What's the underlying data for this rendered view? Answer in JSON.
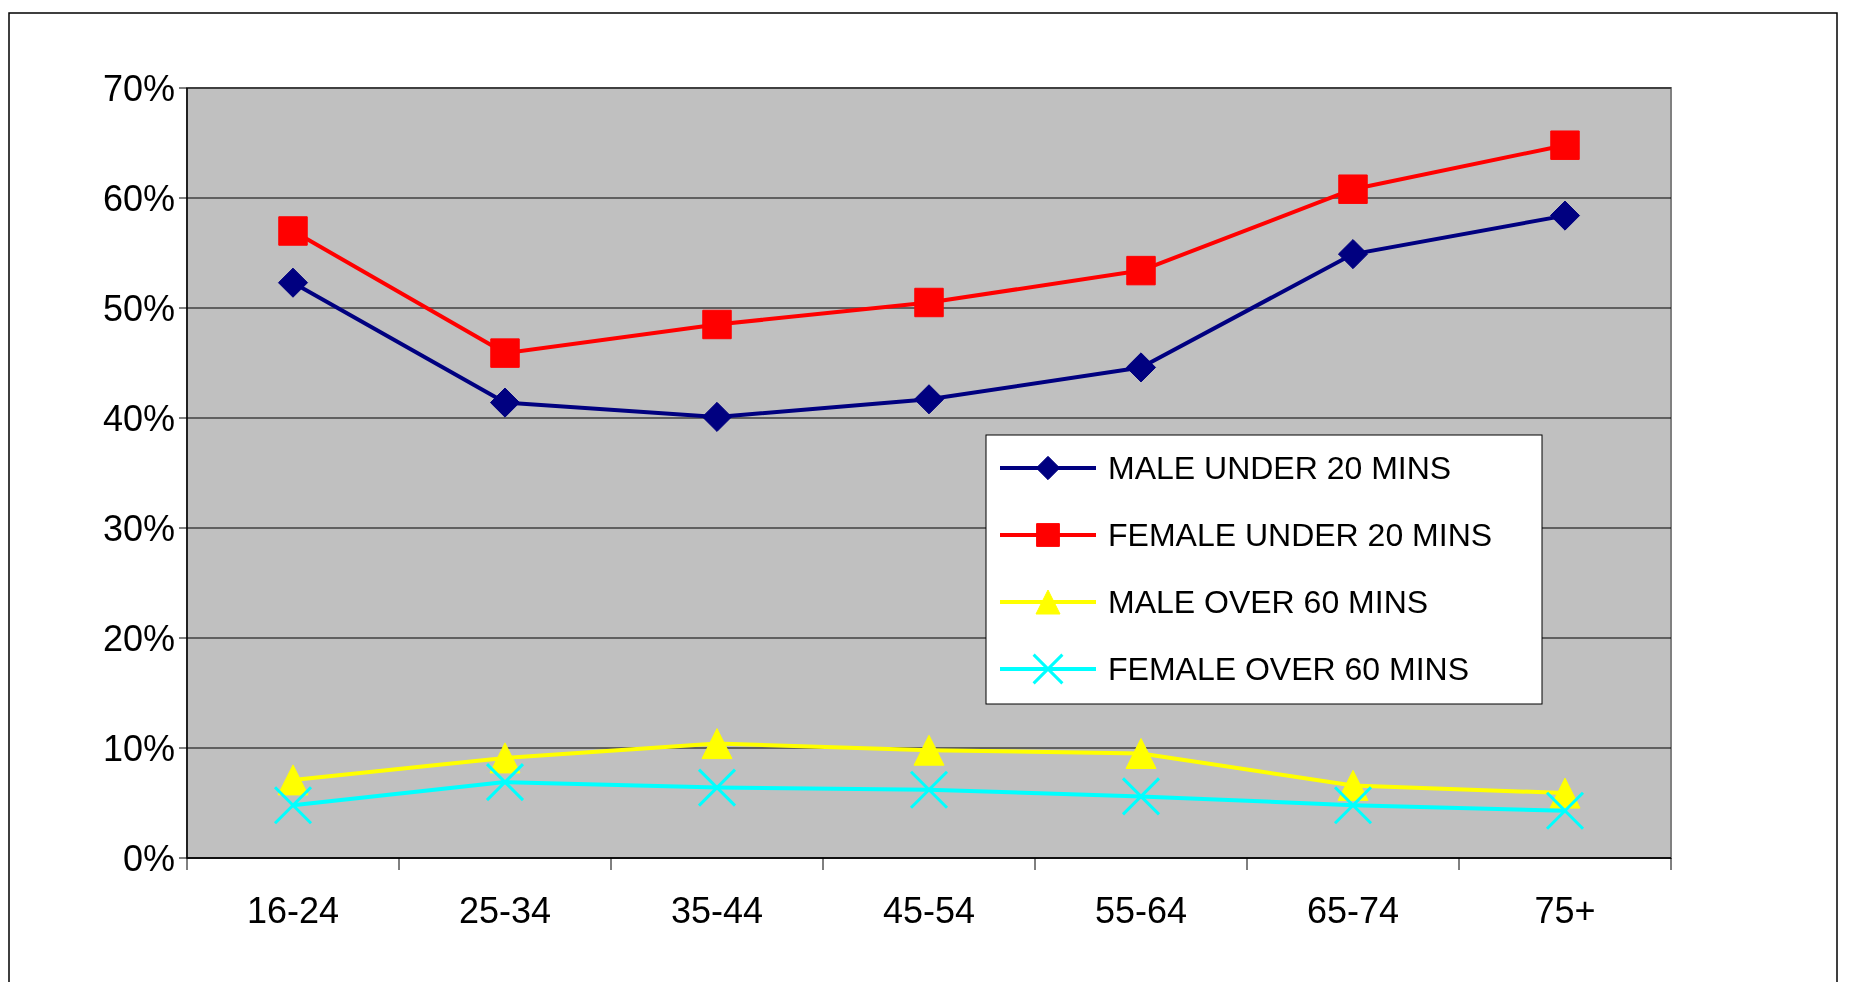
{
  "chart_data": {
    "type": "line",
    "categories": [
      "16-24",
      "25-34",
      "35-44",
      "45-54",
      "55-64",
      "65-74",
      "75+"
    ],
    "ylim": [
      0,
      70
    ],
    "yticks": [
      {
        "value": 0,
        "label": "0%"
      },
      {
        "value": 10,
        "label": "10%"
      },
      {
        "value": 20,
        "label": "20%"
      },
      {
        "value": 30,
        "label": "30%"
      },
      {
        "value": 40,
        "label": "40%"
      },
      {
        "value": 50,
        "label": "50%"
      },
      {
        "value": 60,
        "label": "60%"
      },
      {
        "value": 70,
        "label": "70%"
      }
    ],
    "grid": "y",
    "legend": "right",
    "series": [
      {
        "name": "MALE UNDER 20 MINS",
        "color": "#000080",
        "marker": "diamond",
        "values": [
          52.3,
          41.4,
          40.1,
          41.7,
          44.6,
          54.9,
          58.4
        ]
      },
      {
        "name": "FEMALE UNDER 20 MINS",
        "color": "#ff0000",
        "marker": "square",
        "values": [
          57.0,
          45.9,
          48.5,
          50.5,
          53.4,
          60.8,
          64.8
        ]
      },
      {
        "name": "MALE OVER 60 MINS",
        "color": "#ffff00",
        "marker": "triangle",
        "values": [
          7.1,
          9.1,
          10.4,
          9.8,
          9.5,
          6.6,
          5.9
        ]
      },
      {
        "name": "FEMALE OVER 60 MINS",
        "color": "#00ffff",
        "marker": "cross",
        "values": [
          4.8,
          6.9,
          6.4,
          6.2,
          5.6,
          4.8,
          4.3
        ]
      }
    ]
  }
}
